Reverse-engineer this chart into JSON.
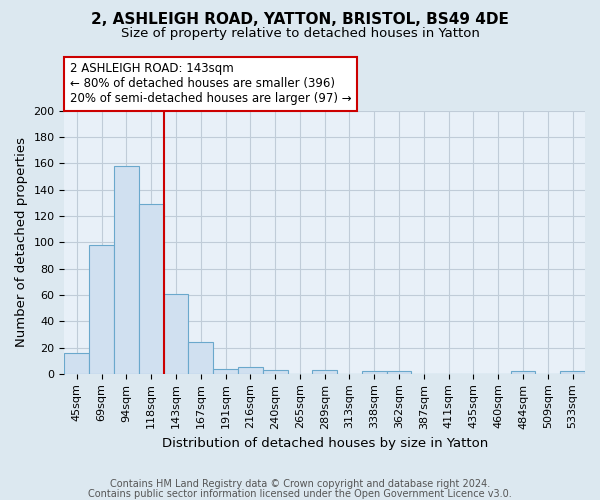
{
  "title": "2, ASHLEIGH ROAD, YATTON, BRISTOL, BS49 4DE",
  "subtitle": "Size of property relative to detached houses in Yatton",
  "xlabel": "Distribution of detached houses by size in Yatton",
  "ylabel": "Number of detached properties",
  "footnote1": "Contains HM Land Registry data © Crown copyright and database right 2024.",
  "footnote2": "Contains public sector information licensed under the Open Government Licence v3.0.",
  "annotation_line1": "2 ASHLEIGH ROAD: 143sqm",
  "annotation_line2": "← 80% of detached houses are smaller (396)",
  "annotation_line3": "20% of semi-detached houses are larger (97) →",
  "bar_color": "#d0e0f0",
  "bar_edge_color": "#6aa8cc",
  "vline_color": "#cc0000",
  "vline_x_index": 4,
  "annotation_box_color": "#cc0000",
  "categories": [
    "45sqm",
    "69sqm",
    "94sqm",
    "118sqm",
    "143sqm",
    "167sqm",
    "191sqm",
    "216sqm",
    "240sqm",
    "265sqm",
    "289sqm",
    "313sqm",
    "338sqm",
    "362sqm",
    "387sqm",
    "411sqm",
    "435sqm",
    "460sqm",
    "484sqm",
    "509sqm",
    "533sqm"
  ],
  "values": [
    16,
    98,
    158,
    129,
    61,
    24,
    4,
    5,
    3,
    0,
    3,
    0,
    2,
    2,
    0,
    0,
    0,
    0,
    2,
    0,
    2
  ],
  "ylim": [
    0,
    200
  ],
  "yticks": [
    0,
    20,
    40,
    60,
    80,
    100,
    120,
    140,
    160,
    180,
    200
  ],
  "background_color": "#dce8f0",
  "plot_bg_color": "#e8f0f8",
  "grid_color": "#c0ccd8",
  "title_fontsize": 11,
  "subtitle_fontsize": 9.5,
  "axis_label_fontsize": 9.5,
  "tick_fontsize": 8,
  "footnote_fontsize": 7,
  "annotation_fontsize": 8.5
}
